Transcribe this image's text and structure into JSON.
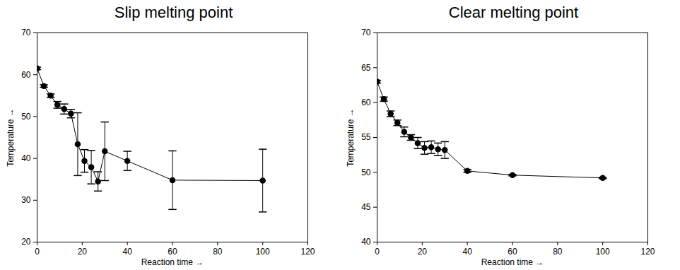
{
  "chart_data": [
    {
      "type": "line",
      "title": "Slip melting point",
      "x_label": "Reaction time",
      "y_label": "Temperature",
      "x": [
        0,
        3,
        6,
        9,
        12,
        15,
        18,
        21,
        24,
        27,
        30,
        40,
        60,
        100
      ],
      "values": [
        61.5,
        57.3,
        55.0,
        52.8,
        51.8,
        50.7,
        43.4,
        39.4,
        37.9,
        34.5,
        41.7,
        39.4,
        34.8,
        34.7
      ],
      "errors": [
        0.3,
        0.3,
        0.4,
        0.8,
        1.2,
        1.0,
        7.5,
        2.7,
        4.0,
        2.3,
        7.0,
        2.3,
        7.0,
        7.5
      ],
      "color": "#000000",
      "marker": "circle",
      "xlim": [
        0,
        120
      ],
      "xticks": [
        0,
        20,
        40,
        60,
        80,
        100,
        120
      ],
      "ylim": [
        20,
        70
      ],
      "yticks": [
        20,
        30,
        40,
        50,
        60,
        70
      ]
    },
    {
      "type": "line",
      "title": "Clear melting point",
      "x_label": "Reaction time",
      "y_label": "Temperature",
      "x": [
        0,
        3,
        6,
        9,
        12,
        15,
        18,
        21,
        24,
        27,
        30,
        40,
        60,
        100
      ],
      "values": [
        63.0,
        60.5,
        58.4,
        57.1,
        55.8,
        55.0,
        54.2,
        53.5,
        53.6,
        53.3,
        53.2,
        50.2,
        49.6,
        49.2
      ],
      "errors": [
        0.2,
        0.3,
        0.4,
        0.4,
        0.7,
        0.4,
        0.8,
        0.9,
        0.9,
        0.9,
        1.2,
        0.2,
        0.1,
        0.1
      ],
      "color": "#000000",
      "marker": "circle",
      "xlim": [
        0,
        120
      ],
      "xticks": [
        0,
        20,
        40,
        60,
        80,
        100,
        120
      ],
      "ylim": [
        40,
        70
      ],
      "yticks": [
        40,
        45,
        50,
        55,
        60,
        65,
        70
      ]
    }
  ]
}
